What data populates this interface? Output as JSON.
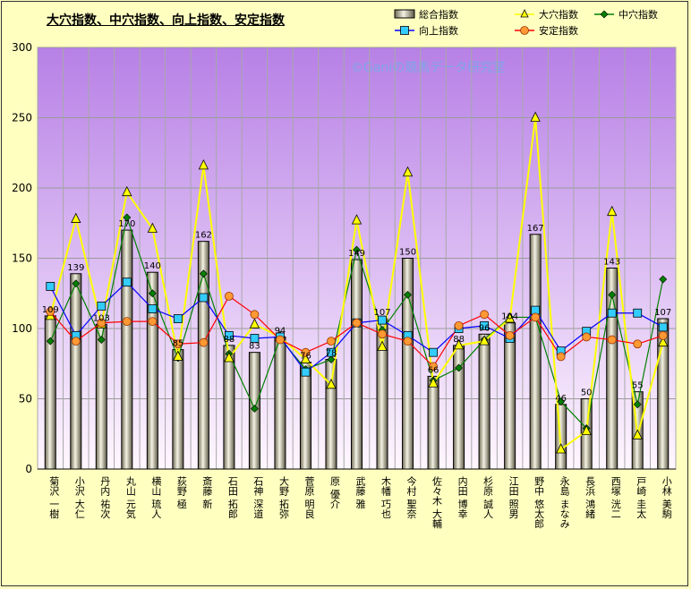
{
  "chart_data": {
    "type": "bar",
    "title": "大穴指数、中穴指数、向上指数、安定指数",
    "watermark": "©Ganiの競馬データ研究室",
    "ylim": [
      0,
      300
    ],
    "yticks": [
      0,
      50,
      100,
      150,
      200,
      250,
      300
    ],
    "grid": true,
    "legend_position": "top-right",
    "categories": [
      "菊沢 一樹",
      "小沢 大仁",
      "丹内 祐次",
      "丸山 元気",
      "横山 琉人",
      "荻野 極",
      "斎藤 新",
      "石田 拓郎",
      "石神 深道",
      "大野 拓弥",
      "菅原 明良",
      "原 優介",
      "武藤 雅",
      "木幡 巧也",
      "今村 聖奈",
      "佐々木 大輔",
      "内田 博幸",
      "杉原 誠人",
      "江田 照男",
      "野中 悠太郎",
      "永島 まなみ",
      "長浜 鴻緒",
      "西塚 洸二",
      "戸崎 圭太",
      "小林 美駒"
    ],
    "series": [
      {
        "name": "総合指数",
        "kind": "bar",
        "color": "#D8D4B8",
        "values": [
          109,
          139,
          103,
          170,
          140,
          85,
          162,
          88,
          83,
          94,
          76,
          78,
          149,
          107,
          150,
          66,
          88,
          96,
          104,
          167,
          46,
          50,
          143,
          55,
          107
        ]
      },
      {
        "name": "大穴指数",
        "kind": "line",
        "color": "#FFFF00",
        "marker": "triangle",
        "values": [
          109,
          178,
          103,
          197,
          171,
          80,
          216,
          79,
          103,
          94,
          78,
          60,
          177,
          87,
          211,
          61,
          88,
          91,
          107,
          250,
          14,
          27,
          183,
          24,
          90
        ]
      },
      {
        "name": "中穴指数",
        "kind": "line",
        "color": "#008000",
        "marker": "diamond",
        "values": [
          91,
          132,
          92,
          179,
          125,
          79,
          139,
          82,
          43,
          93,
          71,
          78,
          156,
          99,
          124,
          63,
          72,
          92,
          108,
          108,
          48,
          29,
          124,
          46,
          135
        ]
      },
      {
        "name": "向上指数",
        "kind": "line",
        "color": "#0000FF",
        "marker": "square",
        "values": [
          130,
          95,
          116,
          133,
          114,
          107,
          122,
          95,
          93,
          94,
          69,
          83,
          104,
          106,
          95,
          83,
          100,
          102,
          93,
          113,
          84,
          98,
          111,
          111,
          101
        ]
      },
      {
        "name": "安定指数",
        "kind": "line",
        "color": "#FF0000",
        "marker": "circle",
        "values": [
          112,
          91,
          104,
          105,
          105,
          89,
          90,
          123,
          110,
          92,
          83,
          91,
          104,
          96,
          91,
          73,
          102,
          110,
          95,
          108,
          80,
          94,
          92,
          89,
          95
        ]
      }
    ]
  }
}
